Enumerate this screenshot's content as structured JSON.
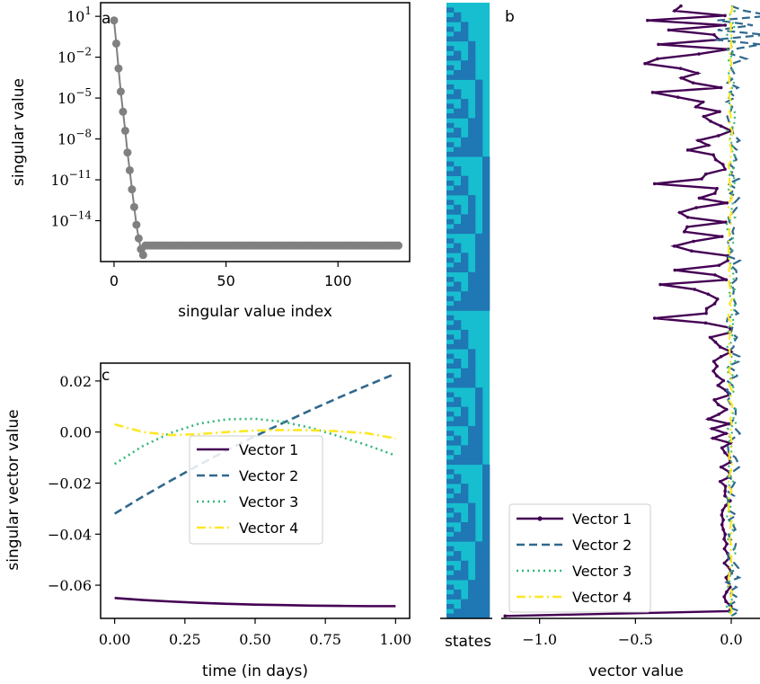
{
  "chart_data": [
    {
      "panel": "a",
      "type": "scatter",
      "xlabel": "singular value index",
      "ylabel": "singular value",
      "yscale": "log",
      "xlim": [
        -6,
        132
      ],
      "ylim": [
        1e-17,
        100
      ],
      "xticks": [
        0,
        50,
        100
      ],
      "yticks": [
        {
          "value": 10,
          "base": "10",
          "exp": "1"
        },
        {
          "value": 0.01,
          "base": "10",
          "exp": "−2"
        },
        {
          "value": 1e-05,
          "base": "10",
          "exp": "−5"
        },
        {
          "value": 1e-08,
          "base": "10",
          "exp": "−8"
        },
        {
          "value": 1e-11,
          "base": "10",
          "exp": "−11"
        },
        {
          "value": 1e-14,
          "base": "10",
          "exp": "−14"
        }
      ],
      "series": [
        {
          "color": "#808080",
          "marker": "circle",
          "points_head": [
            [
              0,
              5
            ],
            [
              1,
              0.1
            ],
            [
              2,
              0.0015
            ],
            [
              3,
              3e-05
            ],
            [
              4,
              1e-06
            ],
            [
              5,
              4e-08
            ],
            [
              6,
              1e-09
            ],
            [
              7,
              5e-11
            ],
            [
              8,
              2e-12
            ],
            [
              9,
              1e-13
            ],
            [
              10,
              5e-15
            ],
            [
              11,
              5e-16
            ],
            [
              12,
              8e-17
            ],
            [
              13,
              3e-17
            ]
          ],
          "tail_x_range": [
            14,
            127
          ],
          "tail_value": 1.5e-16
        }
      ],
      "grid": false
    },
    {
      "panel": "b",
      "type": "line",
      "orientation": "vertical",
      "xlabel": "vector value",
      "xlim": [
        -1.2,
        0.15
      ],
      "xticks": [
        -1.0,
        -0.5,
        0.0
      ],
      "xtick_labels": [
        "−1.0",
        "−0.5",
        "0.0"
      ],
      "state_count": 128,
      "legend": "bottom-left",
      "series": [
        {
          "name": "Vector 1",
          "color": "#440154",
          "style": "solid-dots"
        },
        {
          "name": "Vector 2",
          "color": "#31688e",
          "style": "dashed"
        },
        {
          "name": "Vector 3",
          "color": "#35b779",
          "style": "dotted"
        },
        {
          "name": "Vector 4",
          "color": "#fde725",
          "style": "dashdot"
        }
      ],
      "grid": false
    },
    {
      "panel": "states",
      "type": "heatmap",
      "xlabel": "states",
      "columns": 6,
      "rows": 128,
      "colors": {
        "on": "#1f77b4",
        "off": "#17becf"
      }
    },
    {
      "panel": "c",
      "type": "line",
      "xlabel": "time (in days)",
      "ylabel": "singular vector value",
      "xlim": [
        -0.05,
        1.05
      ],
      "ylim": [
        -0.073,
        0.027
      ],
      "xticks": [
        0.0,
        0.25,
        0.5,
        0.75,
        1.0
      ],
      "xtick_labels": [
        "0.00",
        "0.25",
        "0.50",
        "0.75",
        "1.00"
      ],
      "yticks": [
        0.02,
        0.0,
        -0.02,
        -0.04,
        -0.06
      ],
      "ytick_labels": [
        "0.02",
        "0.00",
        "−0.02",
        "−0.04",
        "−0.06"
      ],
      "legend": "center",
      "x": [
        0,
        0.1,
        0.2,
        0.3,
        0.4,
        0.5,
        0.6,
        0.7,
        0.8,
        0.9,
        1.0
      ],
      "series": [
        {
          "name": "Vector 1",
          "color": "#440154",
          "dash": "",
          "values": [
            -0.065,
            -0.0658,
            -0.0664,
            -0.0669,
            -0.0673,
            -0.0676,
            -0.0678,
            -0.068,
            -0.0681,
            -0.0682,
            -0.0682
          ]
        },
        {
          "name": "Vector 2",
          "color": "#31688e",
          "dash": "9,5",
          "values": [
            -0.032,
            -0.0253,
            -0.019,
            -0.0129,
            -0.0071,
            -0.0016,
            0.0036,
            0.0087,
            0.0136,
            0.0183,
            0.0229
          ]
        },
        {
          "name": "Vector 3",
          "color": "#35b779",
          "dash": "2,4",
          "values": [
            -0.0125,
            -0.0055,
            -0.0003,
            0.0033,
            0.005,
            0.0052,
            0.004,
            0.0016,
            -0.0017,
            -0.0052,
            -0.0092
          ]
        },
        {
          "name": "Vector 4",
          "color": "#fde725",
          "dash": "10,4,2,4",
          "values": [
            0.003,
            0.0,
            -0.0012,
            -0.0008,
            0.0,
            0.0006,
            0.0008,
            0.0007,
            0.0003,
            -0.0005,
            -0.0025
          ]
        }
      ],
      "grid": false
    }
  ],
  "panel_labels": {
    "a": "a",
    "b": "b",
    "c": "c"
  },
  "states_label": "states"
}
